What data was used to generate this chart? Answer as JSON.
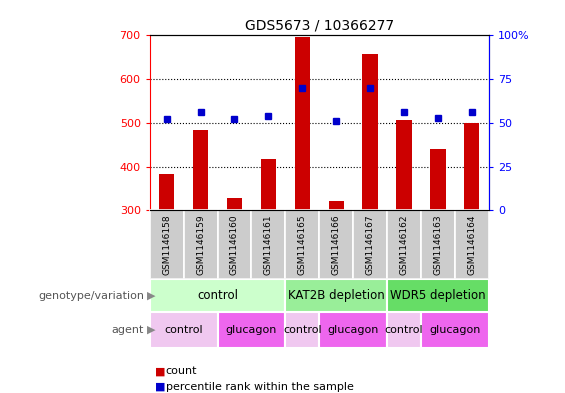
{
  "title": "GDS5673 / 10366277",
  "samples": [
    "GSM1146158",
    "GSM1146159",
    "GSM1146160",
    "GSM1146161",
    "GSM1146165",
    "GSM1146166",
    "GSM1146167",
    "GSM1146162",
    "GSM1146163",
    "GSM1146164"
  ],
  "counts": [
    383,
    484,
    328,
    418,
    697,
    322,
    657,
    507,
    441,
    499
  ],
  "percentile_ranks": [
    52,
    56,
    52,
    54,
    70,
    51,
    70,
    56,
    53,
    56
  ],
  "ylim_left": [
    300,
    700
  ],
  "ylim_right": [
    0,
    100
  ],
  "yticks_left": [
    300,
    400,
    500,
    600,
    700
  ],
  "yticks_right": [
    0,
    25,
    50,
    75,
    100
  ],
  "bar_color": "#cc0000",
  "dot_color": "#0000cc",
  "genotype_groups": [
    {
      "label": "control",
      "start": 0,
      "end": 4,
      "color": "#ccffcc"
    },
    {
      "label": "KAT2B depletion",
      "start": 4,
      "end": 7,
      "color": "#99ee99"
    },
    {
      "label": "WDR5 depletion",
      "start": 7,
      "end": 10,
      "color": "#66dd66"
    }
  ],
  "agent_groups": [
    {
      "label": "control",
      "start": 0,
      "end": 2,
      "color": "#f0c8f0"
    },
    {
      "label": "glucagon",
      "start": 2,
      "end": 4,
      "color": "#ee66ee"
    },
    {
      "label": "control",
      "start": 4,
      "end": 5,
      "color": "#f0c8f0"
    },
    {
      "label": "glucagon",
      "start": 5,
      "end": 7,
      "color": "#ee66ee"
    },
    {
      "label": "control",
      "start": 7,
      "end": 8,
      "color": "#f0c8f0"
    },
    {
      "label": "glucagon",
      "start": 8,
      "end": 10,
      "color": "#ee66ee"
    }
  ],
  "legend_count_color": "#cc0000",
  "legend_percentile_color": "#0000cc",
  "xlabel_genotype": "genotype/variation",
  "xlabel_agent": "agent",
  "sample_bg_color": "#cccccc"
}
